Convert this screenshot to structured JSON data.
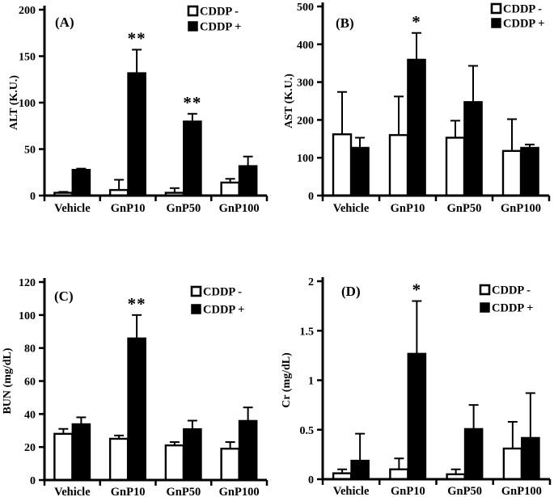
{
  "figure": {
    "background_color": "#ffffff",
    "ink_color": "#000000",
    "legend": {
      "cddp_minus_label": "CDDP -",
      "cddp_plus_label": "CDDP +",
      "cddp_minus_swatch": "#ffffff",
      "cddp_plus_swatch": "#000000"
    }
  },
  "chart_data": [
    {
      "type": "bar",
      "panel_label": "(A)",
      "ylabel": "ALT (K.U.)",
      "xlabel": "",
      "categories": [
        "Vehicle",
        "GnP10",
        "GnP50",
        "GnP100"
      ],
      "ylim": [
        0,
        200
      ],
      "yticks": [
        0,
        50,
        100,
        150,
        200
      ],
      "grid": false,
      "legend_position": "top-right",
      "series": [
        {
          "name": "CDDP -",
          "fill": "#ffffff",
          "values": [
            3,
            6,
            3,
            14
          ],
          "errors": [
            1,
            11,
            5,
            4
          ]
        },
        {
          "name": "CDDP +",
          "fill": "#000000",
          "values": [
            28,
            132,
            80,
            32
          ],
          "errors": [
            1,
            25,
            8,
            10
          ]
        }
      ],
      "significance": [
        {
          "category": "GnP10",
          "series": "CDDP +",
          "label": "**"
        },
        {
          "category": "GnP50",
          "series": "CDDP +",
          "label": "**"
        }
      ]
    },
    {
      "type": "bar",
      "panel_label": "(B)",
      "ylabel": "AST (K.U.)",
      "xlabel": "",
      "categories": [
        "Vehicle",
        "GnP10",
        "GnP50",
        "GnP100"
      ],
      "ylim": [
        0,
        500
      ],
      "yticks": [
        0,
        100,
        200,
        300,
        400,
        500
      ],
      "grid": false,
      "legend_position": "top-right",
      "series": [
        {
          "name": "CDDP -",
          "fill": "#ffffff",
          "values": [
            162,
            160,
            153,
            118
          ],
          "errors": [
            112,
            102,
            45,
            84
          ]
        },
        {
          "name": "CDDP +",
          "fill": "#000000",
          "values": [
            127,
            360,
            248,
            127
          ],
          "errors": [
            26,
            70,
            95,
            8
          ]
        }
      ],
      "significance": [
        {
          "category": "GnP10",
          "series": "CDDP +",
          "label": "*"
        }
      ]
    },
    {
      "type": "bar",
      "panel_label": "(C)",
      "ylabel": "BUN (mg/dL)",
      "xlabel": "",
      "categories": [
        "Vehicle",
        "GnP10",
        "GnP50",
        "GnP100"
      ],
      "ylim": [
        0,
        120
      ],
      "yticks": [
        0,
        20,
        40,
        60,
        80,
        100,
        120
      ],
      "grid": false,
      "legend_position": "top-right",
      "series": [
        {
          "name": "CDDP -",
          "fill": "#ffffff",
          "values": [
            28,
            25,
            21,
            19
          ],
          "errors": [
            3,
            2,
            2,
            4
          ]
        },
        {
          "name": "CDDP +",
          "fill": "#000000",
          "values": [
            34,
            86,
            31,
            36
          ],
          "errors": [
            4,
            14,
            5,
            8
          ]
        }
      ],
      "significance": [
        {
          "category": "GnP10",
          "series": "CDDP +",
          "label": "**"
        }
      ]
    },
    {
      "type": "bar",
      "panel_label": "(D)",
      "ylabel": "Cr (mg/dL)",
      "xlabel": "",
      "categories": [
        "Vehicle",
        "GnP10",
        "GnP50",
        "GnP100"
      ],
      "ylim": [
        0,
        2
      ],
      "yticks": [
        0,
        0.5,
        1,
        1.5,
        2
      ],
      "grid": false,
      "legend_position": "top-right",
      "series": [
        {
          "name": "CDDP -",
          "fill": "#ffffff",
          "values": [
            0.06,
            0.1,
            0.05,
            0.31
          ],
          "errors": [
            0.04,
            0.11,
            0.05,
            0.27
          ]
        },
        {
          "name": "CDDP +",
          "fill": "#000000",
          "values": [
            0.19,
            1.27,
            0.51,
            0.42
          ],
          "errors": [
            0.27,
            0.53,
            0.24,
            0.45
          ]
        }
      ],
      "significance": [
        {
          "category": "GnP10",
          "series": "CDDP +",
          "label": "*"
        }
      ]
    }
  ]
}
